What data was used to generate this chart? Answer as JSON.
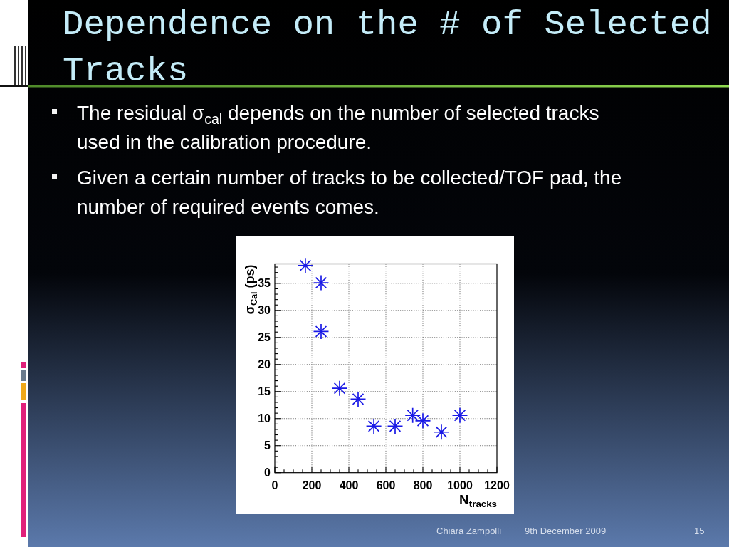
{
  "chart_data": {
    "type": "scatter",
    "title": "Dependence on the # of Selected Tracks",
    "annotations": [
      "The residual σ$_{cal}$ depends on the number of selected tracks used in the calibration procedure.",
      "Given a certain number of tracks to be collected/TOF pad, the number of required events comes.",
      "Chiara Zampolli",
      "9th December 2009",
      "15"
    ],
    "xlabel": "N$_{tracks}$",
    "ylabel": "σ$_{Cal}$ (ps)",
    "x": [
      165,
      250,
      250,
      350,
      450,
      535,
      650,
      745,
      800,
      900,
      1000
    ],
    "values": [
      38.3,
      35.1,
      26.1,
      15.6,
      13.6,
      8.6,
      8.6,
      10.6,
      9.6,
      7.5,
      10.6
    ],
    "color": "#1a1ae6",
    "marker": "star",
    "xlim": [
      0,
      1200
    ],
    "ylim": [
      0,
      38.6
    ],
    "xticks": [
      0,
      {
        "value": 50,
        "label": null
      },
      {
        "value": 100,
        "label": null
      },
      {
        "value": 150,
        "label": null
      },
      200,
      {
        "value": 250,
        "label": null
      },
      {
        "value": 300,
        "label": null
      },
      {
        "value": 350,
        "label": null
      },
      400,
      {
        "value": 450,
        "label": null
      },
      {
        "value": 500,
        "label": null
      },
      {
        "value": 550,
        "label": null
      },
      600,
      {
        "value": 650,
        "label": null
      },
      {
        "value": 700,
        "label": null
      },
      {
        "value": 750,
        "label": null
      },
      800,
      {
        "value": 850,
        "label": null
      },
      {
        "value": 900,
        "label": null
      },
      {
        "value": 950,
        "label": null
      },
      1000,
      {
        "value": 1050,
        "label": null
      },
      {
        "value": 1100,
        "label": null
      },
      {
        "value": 1150,
        "label": null
      },
      1200
    ],
    "yticks": [
      0,
      {
        "value": 1,
        "label": null
      },
      {
        "value": 2,
        "label": null
      },
      {
        "value": 3,
        "label": null
      },
      {
        "value": 4,
        "label": null
      },
      5,
      {
        "value": 6,
        "label": null
      },
      {
        "value": 7,
        "label": null
      },
      {
        "value": 8,
        "label": null
      },
      {
        "value": 9,
        "label": null
      },
      10,
      {
        "value": 11,
        "label": null
      },
      {
        "value": 12,
        "label": null
      },
      {
        "value": 13,
        "label": null
      },
      {
        "value": 14,
        "label": null
      },
      15,
      {
        "value": 16,
        "label": null
      },
      {
        "value": 17,
        "label": null
      },
      {
        "value": 18,
        "label": null
      },
      {
        "value": 19,
        "label": null
      },
      20,
      {
        "value": 21,
        "label": null
      },
      {
        "value": 22,
        "label": null
      },
      {
        "value": 23,
        "label": null
      },
      {
        "value": 24,
        "label": null
      },
      25,
      {
        "value": 26,
        "label": null
      },
      {
        "value": 27,
        "label": null
      },
      {
        "value": 28,
        "label": null
      },
      {
        "value": 29,
        "label": null
      },
      30,
      {
        "value": 31,
        "label": null
      },
      {
        "value": 32,
        "label": null
      },
      {
        "value": 33,
        "label": null
      },
      {
        "value": 34,
        "label": null
      },
      35,
      {
        "value": 36,
        "label": null
      },
      {
        "value": 37,
        "label": null
      },
      {
        "value": 38,
        "label": null
      }
    ],
    "grid": true
  }
}
